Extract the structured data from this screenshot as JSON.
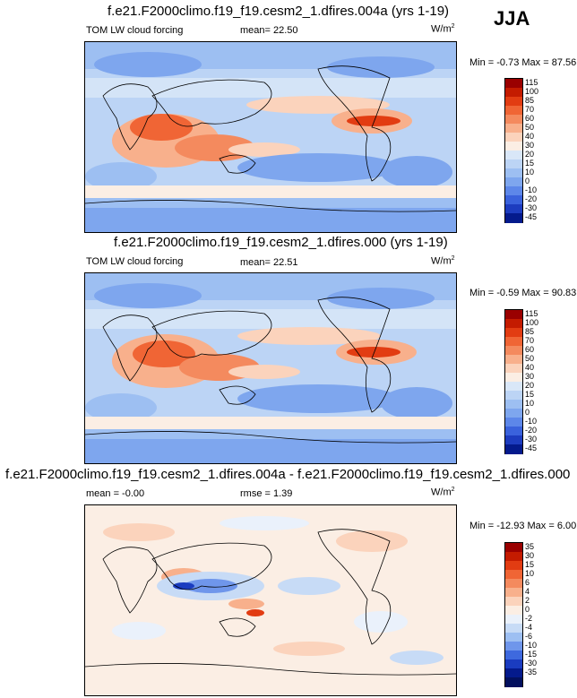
{
  "season": "JJA",
  "panels": [
    {
      "title": "f.e21.F2000climo.f19_f19.cesm2_1.dfires.004a (yrs 1-19)",
      "variable": "TOM LW cloud forcing",
      "stat": "mean=  22.50",
      "units": "W/m",
      "units_sup": "2",
      "minmax": "Min = -0.73 Max =  87.56",
      "levels": [
        "115",
        "100",
        "85",
        "70",
        "60",
        "50",
        "40",
        "30",
        "20",
        "15",
        "10",
        "0",
        "-10",
        "-20",
        "-30",
        "-45"
      ],
      "colors": [
        "#9a0000",
        "#c41b00",
        "#e23c12",
        "#f06535",
        "#f48a5e",
        "#f8b08c",
        "#fbd3bc",
        "#fbeee4",
        "#d9e7f8",
        "#bcd4f5",
        "#9dbff2",
        "#7ea6ee",
        "#5d87e9",
        "#3a62dc",
        "#1d3cbf",
        "#041a8c"
      ]
    },
    {
      "title": "f.e21.F2000climo.f19_f19.cesm2_1.dfires.000 (yrs 1-19)",
      "variable": "TOM LW cloud forcing",
      "stat": "mean=  22.51",
      "units": "W/m",
      "units_sup": "2",
      "minmax": "Min = -0.59 Max =  90.83",
      "levels": [
        "115",
        "100",
        "85",
        "70",
        "60",
        "50",
        "40",
        "30",
        "20",
        "15",
        "10",
        "0",
        "-10",
        "-20",
        "-30",
        "-45"
      ],
      "colors": [
        "#9a0000",
        "#c41b00",
        "#e23c12",
        "#f06535",
        "#f48a5e",
        "#f8b08c",
        "#fbd3bc",
        "#fbeee4",
        "#d9e7f8",
        "#bcd4f5",
        "#9dbff2",
        "#7ea6ee",
        "#5d87e9",
        "#3a62dc",
        "#1d3cbf",
        "#041a8c"
      ]
    },
    {
      "title": "f.e21.F2000climo.f19_f19.cesm2_1.dfires.004a - f.e21.F2000climo.f19_f19.cesm2_1.dfires.000",
      "variable": "mean =  -0.00",
      "stat": "rmse =   1.39",
      "units": "W/m",
      "units_sup": "2",
      "minmax": "Min = -12.93 Max =   6.00",
      "levels": [
        "35",
        "30",
        "15",
        "10",
        "6",
        "4",
        "2",
        "0",
        "-2",
        "-4",
        "-6",
        "-10",
        "-15",
        "-30",
        "-35"
      ],
      "colors": [
        "#9a0000",
        "#c41b00",
        "#e23c12",
        "#f06535",
        "#f48a5e",
        "#f8b08c",
        "#fbd3bc",
        "#fbeee4",
        "#eaf1fb",
        "#c7dbf6",
        "#9dbff2",
        "#6f96eb",
        "#3e69de",
        "#1a3cc0",
        "#041a8c",
        "#02105e"
      ]
    }
  ]
}
